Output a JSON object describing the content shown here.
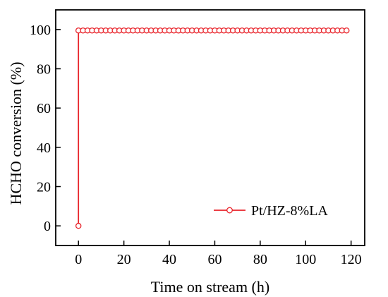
{
  "chart_data": {
    "type": "line",
    "title": "",
    "xlabel": "Time on stream (h)",
    "ylabel": "HCHO conversion (%)",
    "xlim": [
      -10,
      126
    ],
    "ylim": [
      -10,
      110
    ],
    "xticks": [
      0,
      20,
      40,
      60,
      80,
      100,
      120
    ],
    "yticks": [
      0,
      20,
      40,
      60,
      80,
      100
    ],
    "grid": false,
    "legend_position": "lower-right",
    "series": [
      {
        "name": "Pt/HZ-8%LA",
        "color": "#e8232a",
        "marker": "open-circle",
        "x": [
          0,
          0,
          2,
          4,
          6,
          8,
          10,
          12,
          14,
          16,
          18,
          20,
          22,
          24,
          26,
          28,
          30,
          32,
          34,
          36,
          38,
          40,
          42,
          44,
          46,
          48,
          50,
          52,
          54,
          56,
          58,
          60,
          62,
          64,
          66,
          68,
          70,
          72,
          74,
          76,
          78,
          80,
          82,
          84,
          86,
          88,
          90,
          92,
          94,
          96,
          98,
          100,
          102,
          104,
          106,
          108,
          110,
          112,
          114,
          116,
          118
        ],
        "y": [
          0,
          99.5,
          99.5,
          99.5,
          99.5,
          99.5,
          99.5,
          99.5,
          99.5,
          99.5,
          99.5,
          99.5,
          99.5,
          99.5,
          99.5,
          99.5,
          99.5,
          99.5,
          99.5,
          99.5,
          99.5,
          99.5,
          99.5,
          99.5,
          99.5,
          99.5,
          99.5,
          99.5,
          99.5,
          99.5,
          99.5,
          99.5,
          99.5,
          99.5,
          99.5,
          99.5,
          99.5,
          99.5,
          99.5,
          99.5,
          99.5,
          99.5,
          99.5,
          99.5,
          99.5,
          99.5,
          99.5,
          99.5,
          99.5,
          99.5,
          99.5,
          99.5,
          99.5,
          99.5,
          99.5,
          99.5,
          99.5,
          99.5,
          99.5,
          99.5,
          99.5
        ]
      }
    ]
  }
}
